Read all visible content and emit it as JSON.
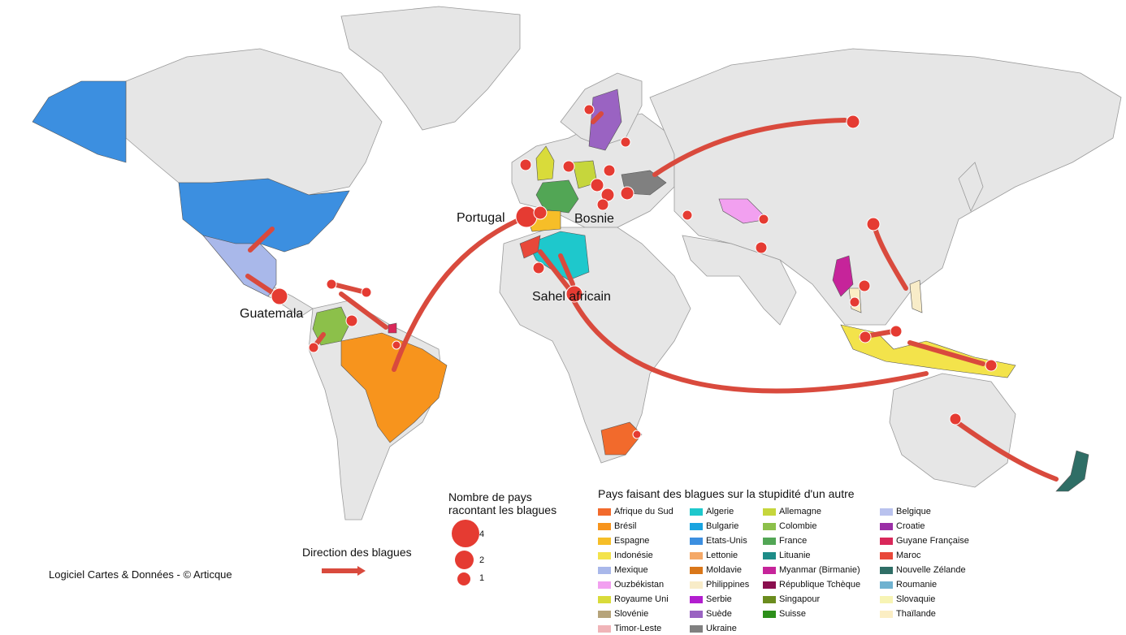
{
  "map_labels": {
    "portugal": "Portugal",
    "bosnie": "Bosnie",
    "sahel": "Sahel africain",
    "guatemala": "Guatemala"
  },
  "size_legend": {
    "title_line1": "Nombre de pays",
    "title_line2": "racontant les blagues",
    "values": [
      "4",
      "2",
      "1"
    ]
  },
  "direction_legend": {
    "label": "Direction des blagues"
  },
  "credit": "Logiciel Cartes & Données - © Articque",
  "country_legend": {
    "title": "Pays faisant des blagues sur la stupidité d'un autre",
    "columns": [
      [
        {
          "name": "Afrique du Sud",
          "color": "#f26a2c"
        },
        {
          "name": "Brésil",
          "color": "#f7941d"
        },
        {
          "name": "Espagne",
          "color": "#f6be28"
        },
        {
          "name": "Indonésie",
          "color": "#f3e34b"
        },
        {
          "name": "Mexique",
          "color": "#a9b8ea"
        },
        {
          "name": "Ouzbékistan",
          "color": "#f2a0f0"
        },
        {
          "name": "Royaume Uni",
          "color": "#d9db3a"
        },
        {
          "name": "Slovénie",
          "color": "#b6a47b"
        },
        {
          "name": "Timor-Leste",
          "color": "#f0b4b8"
        }
      ],
      [
        {
          "name": "Algerie",
          "color": "#1ec8cc"
        },
        {
          "name": "Bulgarie",
          "color": "#1aa4e0"
        },
        {
          "name": "Etats-Unis",
          "color": "#3c8fe0"
        },
        {
          "name": "Lettonie",
          "color": "#f4a867"
        },
        {
          "name": "Moldavie",
          "color": "#d9771a"
        },
        {
          "name": "Philippines",
          "color": "#f8ecc8"
        },
        {
          "name": "Serbie",
          "color": "#b21ecf"
        },
        {
          "name": "Suède",
          "color": "#9a63c2"
        },
        {
          "name": "Ukraine",
          "color": "#808080"
        }
      ],
      [
        {
          "name": "Allemagne",
          "color": "#c6d63c"
        },
        {
          "name": "Colombie",
          "color": "#8cc04a"
        },
        {
          "name": "France",
          "color": "#52a655"
        },
        {
          "name": "Lituanie",
          "color": "#1d8c88"
        },
        {
          "name": "Myanmar (Birmanie)",
          "color": "#c6249a"
        },
        {
          "name": "République Tchèque",
          "color": "#8a0f4e"
        },
        {
          "name": "Singapour",
          "color": "#6b8c1e"
        },
        {
          "name": "Suisse",
          "color": "#2c8f1a"
        }
      ],
      [
        {
          "name": "Belgique",
          "color": "#b9c2ee"
        },
        {
          "name": "Croatie",
          "color": "#9a2fa6"
        },
        {
          "name": "Guyane Française",
          "color": "#d9285a"
        },
        {
          "name": "Maroc",
          "color": "#e8483a"
        },
        {
          "name": "Nouvelle Zélande",
          "color": "#2f6e66"
        },
        {
          "name": "Roumanie",
          "color": "#6fb2d0"
        },
        {
          "name": "Slovaquie",
          "color": "#f7f4b4"
        },
        {
          "name": "Thaïlande",
          "color": "#fbeec4"
        }
      ]
    ]
  },
  "colors": {
    "land": "#e6e6e6",
    "border": "#9a9a9a",
    "bubble": "#e53b32",
    "arrow": "#d94a3d"
  }
}
